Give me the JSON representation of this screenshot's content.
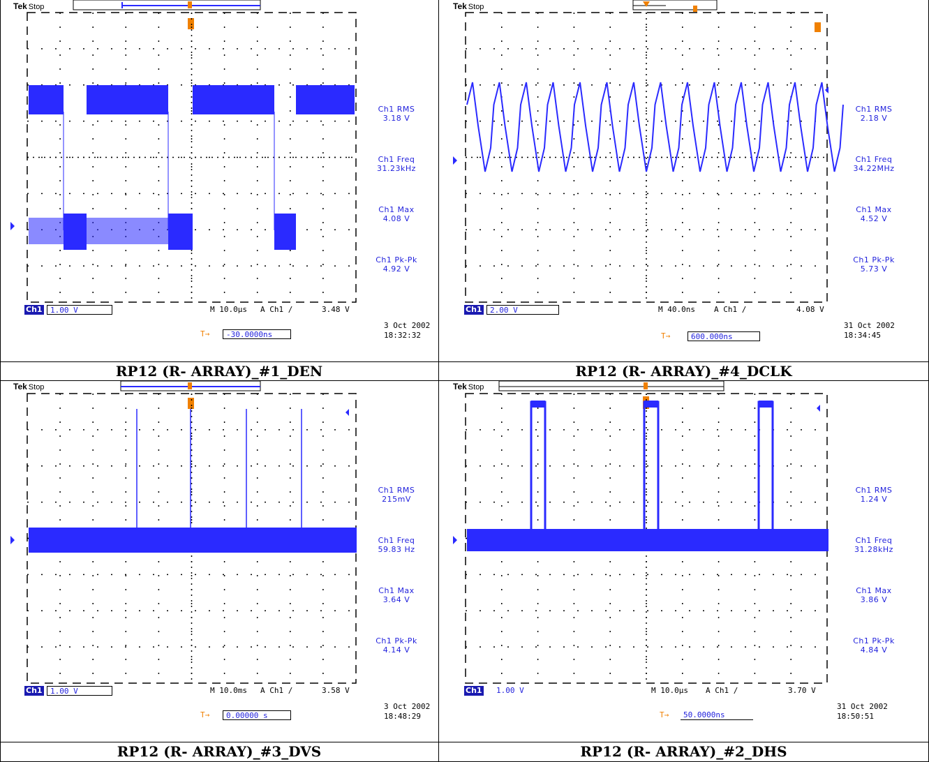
{
  "panels": [
    {
      "caption": "RP12 (R- ARRAY)_#1_DEN",
      "brand": "Tek",
      "state": "Stop",
      "measurements": [
        {
          "label": "Ch1 RMS",
          "value": "3.18 V"
        },
        {
          "label": "Ch1 Freq",
          "value": "31.23kHz"
        },
        {
          "label": "Ch1 Max",
          "value": "4.08 V"
        },
        {
          "label": "Ch1 Pk-Pk",
          "value": "4.92 V"
        }
      ],
      "channel": "Ch1",
      "volts_div": "1.00 V",
      "timebase": "M 10.0µs",
      "trigger": "A  Ch1  ∕",
      "trigger_level": "3.48 V",
      "trigger_offset": "-30.0000ns",
      "date": "3  Oct  2002",
      "time": "18:32:32"
    },
    {
      "caption": "RP12 (R- ARRAY)_#4_DCLK",
      "brand": "Tek",
      "state": "Stop",
      "measurements": [
        {
          "label": "Ch1 RMS",
          "value": "2.18 V"
        },
        {
          "label": "Ch1 Freq",
          "value": "34.22MHz"
        },
        {
          "label": "Ch1 Max",
          "value": "4.52 V"
        },
        {
          "label": "Ch1 Pk-Pk",
          "value": "5.73 V"
        }
      ],
      "channel": "Ch1",
      "volts_div": "2.00 V",
      "timebase": "M 40.0ns",
      "trigger": "A  Ch1  ∕",
      "trigger_level": "4.08 V",
      "trigger_offset": "600.000ns",
      "date": "31 Oct  2002",
      "time": "18:34:45"
    },
    {
      "caption": "RP12 (R- ARRAY)_#3_DVS",
      "brand": "Tek",
      "state": "Stop",
      "measurements": [
        {
          "label": "Ch1 RMS",
          "value": "215mV"
        },
        {
          "label": "Ch1 Freq",
          "value": "59.83 Hz"
        },
        {
          "label": "Ch1 Max",
          "value": "3.64 V"
        },
        {
          "label": "Ch1 Pk-Pk",
          "value": "4.14 V"
        }
      ],
      "channel": "Ch1",
      "volts_div": "1.00 V",
      "timebase": "M 10.0ms",
      "trigger": "A  Ch1  ∕",
      "trigger_level": "3.58 V",
      "trigger_offset": "0.00000 s",
      "date": "3  Oct  2002",
      "time": "18:48:29"
    },
    {
      "caption": "RP12 (R- ARRAY)_#2_DHS",
      "brand": "Tek",
      "state": "Stop",
      "measurements": [
        {
          "label": "Ch1 RMS",
          "value": "1.24 V"
        },
        {
          "label": "Ch1 Freq",
          "value": "31.28kHz"
        },
        {
          "label": "Ch1 Max",
          "value": "3.86 V"
        },
        {
          "label": "Ch1 Pk-Pk",
          "value": "4.84 V"
        }
      ],
      "channel": "Ch1",
      "volts_div": "1.00 V",
      "timebase": "M 10.0µs",
      "trigger": "A  Ch1  ∕",
      "trigger_level": "3.70 V",
      "trigger_offset": "50.0000ns",
      "date": "31 Oct  2002",
      "time": "18:50:51"
    }
  ],
  "colors": {
    "trace": "#2a2aff",
    "text_blue": "#2222dd",
    "marker": "#f08000",
    "chbox": "#1a1ab0"
  }
}
